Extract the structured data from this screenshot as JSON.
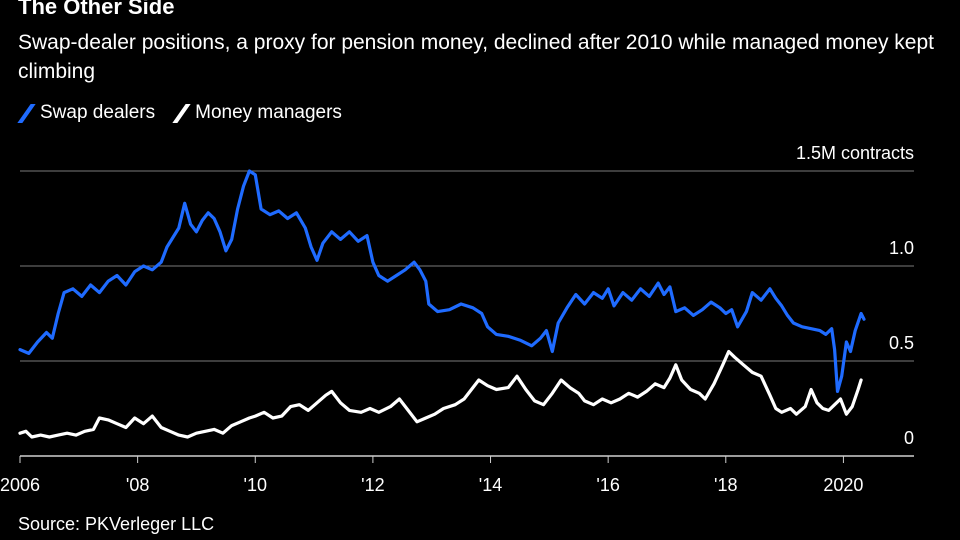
{
  "title": "The Other Side",
  "subtitle": "Swap-dealer positions, a proxy for pension money, declined after 2010 while managed money kept climbing",
  "source": "Source: PKVerleger LLC",
  "chart_data": {
    "type": "line",
    "title": "The Other Side",
    "subtitle": "Swap-dealer positions, a proxy for pension money, declined after 2010 while managed money kept climbing",
    "unit_label": "1.5M contracts",
    "ylim": [
      0,
      1.5
    ],
    "xlim": [
      2006,
      2021.2
    ],
    "y_ticks": [
      {
        "value": 1.5,
        "label": "1.5M contracts"
      },
      {
        "value": 1.0,
        "label": "1.0"
      },
      {
        "value": 0.5,
        "label": "0.5"
      },
      {
        "value": 0,
        "label": "0"
      }
    ],
    "x_ticks": [
      {
        "value": 2006,
        "label": "2006"
      },
      {
        "value": 2008,
        "label": "'08"
      },
      {
        "value": 2010,
        "label": "'10"
      },
      {
        "value": 2012,
        "label": "'12"
      },
      {
        "value": 2014,
        "label": "'14"
      },
      {
        "value": 2016,
        "label": "'16"
      },
      {
        "value": 2018,
        "label": "'18"
      },
      {
        "value": 2020,
        "label": "2020"
      }
    ],
    "grid": true,
    "legend_position": "top-left",
    "series": [
      {
        "name": "Swap dealers",
        "color": "#1f6bff",
        "points": [
          [
            2006.0,
            0.56
          ],
          [
            2006.15,
            0.54
          ],
          [
            2006.3,
            0.6
          ],
          [
            2006.45,
            0.65
          ],
          [
            2006.55,
            0.62
          ],
          [
            2006.65,
            0.75
          ],
          [
            2006.75,
            0.86
          ],
          [
            2006.9,
            0.88
          ],
          [
            2007.05,
            0.84
          ],
          [
            2007.2,
            0.9
          ],
          [
            2007.35,
            0.86
          ],
          [
            2007.5,
            0.92
          ],
          [
            2007.65,
            0.95
          ],
          [
            2007.8,
            0.9
          ],
          [
            2007.95,
            0.97
          ],
          [
            2008.1,
            1.0
          ],
          [
            2008.25,
            0.98
          ],
          [
            2008.4,
            1.02
          ],
          [
            2008.5,
            1.1
          ],
          [
            2008.6,
            1.15
          ],
          [
            2008.7,
            1.2
          ],
          [
            2008.8,
            1.33
          ],
          [
            2008.9,
            1.22
          ],
          [
            2009.0,
            1.18
          ],
          [
            2009.1,
            1.24
          ],
          [
            2009.2,
            1.28
          ],
          [
            2009.3,
            1.25
          ],
          [
            2009.4,
            1.18
          ],
          [
            2009.5,
            1.08
          ],
          [
            2009.6,
            1.14
          ],
          [
            2009.7,
            1.3
          ],
          [
            2009.8,
            1.42
          ],
          [
            2009.9,
            1.5
          ],
          [
            2010.0,
            1.48
          ],
          [
            2010.1,
            1.3
          ],
          [
            2010.25,
            1.27
          ],
          [
            2010.4,
            1.29
          ],
          [
            2010.55,
            1.25
          ],
          [
            2010.7,
            1.28
          ],
          [
            2010.85,
            1.2
          ],
          [
            2010.95,
            1.1
          ],
          [
            2011.05,
            1.03
          ],
          [
            2011.15,
            1.12
          ],
          [
            2011.3,
            1.18
          ],
          [
            2011.45,
            1.14
          ],
          [
            2011.6,
            1.18
          ],
          [
            2011.75,
            1.13
          ],
          [
            2011.9,
            1.16
          ],
          [
            2012.0,
            1.02
          ],
          [
            2012.1,
            0.95
          ],
          [
            2012.25,
            0.92
          ],
          [
            2012.4,
            0.95
          ],
          [
            2012.55,
            0.98
          ],
          [
            2012.7,
            1.02
          ],
          [
            2012.8,
            0.98
          ],
          [
            2012.9,
            0.92
          ],
          [
            2012.95,
            0.8
          ],
          [
            2013.1,
            0.76
          ],
          [
            2013.3,
            0.77
          ],
          [
            2013.5,
            0.8
          ],
          [
            2013.7,
            0.78
          ],
          [
            2013.85,
            0.75
          ],
          [
            2013.95,
            0.68
          ],
          [
            2014.1,
            0.64
          ],
          [
            2014.3,
            0.63
          ],
          [
            2014.5,
            0.61
          ],
          [
            2014.7,
            0.58
          ],
          [
            2014.85,
            0.62
          ],
          [
            2014.95,
            0.66
          ],
          [
            2015.05,
            0.55
          ],
          [
            2015.15,
            0.7
          ],
          [
            2015.3,
            0.78
          ],
          [
            2015.45,
            0.85
          ],
          [
            2015.6,
            0.8
          ],
          [
            2015.75,
            0.86
          ],
          [
            2015.9,
            0.83
          ],
          [
            2016.0,
            0.88
          ],
          [
            2016.1,
            0.79
          ],
          [
            2016.25,
            0.86
          ],
          [
            2016.4,
            0.82
          ],
          [
            2016.55,
            0.88
          ],
          [
            2016.7,
            0.84
          ],
          [
            2016.85,
            0.91
          ],
          [
            2016.95,
            0.85
          ],
          [
            2017.05,
            0.89
          ],
          [
            2017.15,
            0.76
          ],
          [
            2017.3,
            0.78
          ],
          [
            2017.45,
            0.74
          ],
          [
            2017.6,
            0.77
          ],
          [
            2017.75,
            0.81
          ],
          [
            2017.9,
            0.78
          ],
          [
            2018.0,
            0.75
          ],
          [
            2018.1,
            0.77
          ],
          [
            2018.2,
            0.68
          ],
          [
            2018.35,
            0.76
          ],
          [
            2018.45,
            0.86
          ],
          [
            2018.6,
            0.82
          ],
          [
            2018.75,
            0.88
          ],
          [
            2018.85,
            0.83
          ],
          [
            2018.95,
            0.79
          ],
          [
            2019.05,
            0.74
          ],
          [
            2019.15,
            0.7
          ],
          [
            2019.3,
            0.68
          ],
          [
            2019.45,
            0.67
          ],
          [
            2019.6,
            0.66
          ],
          [
            2019.7,
            0.64
          ],
          [
            2019.8,
            0.67
          ],
          [
            2019.85,
            0.56
          ],
          [
            2019.9,
            0.34
          ],
          [
            2019.97,
            0.42
          ],
          [
            2020.05,
            0.6
          ],
          [
            2020.12,
            0.55
          ],
          [
            2020.2,
            0.66
          ],
          [
            2020.3,
            0.75
          ],
          [
            2020.35,
            0.72
          ]
        ]
      },
      {
        "name": "Money managers",
        "color": "#ffffff",
        "points": [
          [
            2006.0,
            0.12
          ],
          [
            2006.1,
            0.13
          ],
          [
            2006.2,
            0.1
          ],
          [
            2006.35,
            0.11
          ],
          [
            2006.5,
            0.1
          ],
          [
            2006.65,
            0.11
          ],
          [
            2006.8,
            0.12
          ],
          [
            2006.95,
            0.11
          ],
          [
            2007.1,
            0.13
          ],
          [
            2007.25,
            0.14
          ],
          [
            2007.35,
            0.2
          ],
          [
            2007.5,
            0.19
          ],
          [
            2007.65,
            0.17
          ],
          [
            2007.8,
            0.15
          ],
          [
            2007.95,
            0.2
          ],
          [
            2008.1,
            0.17
          ],
          [
            2008.25,
            0.21
          ],
          [
            2008.4,
            0.15
          ],
          [
            2008.55,
            0.13
          ],
          [
            2008.7,
            0.11
          ],
          [
            2008.85,
            0.1
          ],
          [
            2009.0,
            0.12
          ],
          [
            2009.15,
            0.13
          ],
          [
            2009.3,
            0.14
          ],
          [
            2009.45,
            0.12
          ],
          [
            2009.6,
            0.16
          ],
          [
            2009.75,
            0.18
          ],
          [
            2009.9,
            0.2
          ],
          [
            2010.0,
            0.21
          ],
          [
            2010.15,
            0.23
          ],
          [
            2010.3,
            0.2
          ],
          [
            2010.45,
            0.21
          ],
          [
            2010.6,
            0.26
          ],
          [
            2010.75,
            0.27
          ],
          [
            2010.9,
            0.24
          ],
          [
            2011.05,
            0.28
          ],
          [
            2011.2,
            0.32
          ],
          [
            2011.3,
            0.34
          ],
          [
            2011.45,
            0.28
          ],
          [
            2011.6,
            0.24
          ],
          [
            2011.8,
            0.23
          ],
          [
            2011.95,
            0.25
          ],
          [
            2012.1,
            0.23
          ],
          [
            2012.3,
            0.26
          ],
          [
            2012.45,
            0.3
          ],
          [
            2012.6,
            0.24
          ],
          [
            2012.75,
            0.18
          ],
          [
            2012.9,
            0.2
          ],
          [
            2013.05,
            0.22
          ],
          [
            2013.2,
            0.25
          ],
          [
            2013.4,
            0.27
          ],
          [
            2013.55,
            0.3
          ],
          [
            2013.7,
            0.36
          ],
          [
            2013.8,
            0.4
          ],
          [
            2013.95,
            0.37
          ],
          [
            2014.1,
            0.35
          ],
          [
            2014.3,
            0.36
          ],
          [
            2014.45,
            0.42
          ],
          [
            2014.6,
            0.35
          ],
          [
            2014.75,
            0.29
          ],
          [
            2014.9,
            0.27
          ],
          [
            2015.05,
            0.33
          ],
          [
            2015.2,
            0.4
          ],
          [
            2015.35,
            0.36
          ],
          [
            2015.5,
            0.33
          ],
          [
            2015.6,
            0.29
          ],
          [
            2015.75,
            0.27
          ],
          [
            2015.9,
            0.3
          ],
          [
            2016.05,
            0.28
          ],
          [
            2016.2,
            0.3
          ],
          [
            2016.35,
            0.33
          ],
          [
            2016.5,
            0.31
          ],
          [
            2016.65,
            0.34
          ],
          [
            2016.8,
            0.38
          ],
          [
            2016.95,
            0.36
          ],
          [
            2017.05,
            0.41
          ],
          [
            2017.15,
            0.48
          ],
          [
            2017.25,
            0.4
          ],
          [
            2017.4,
            0.35
          ],
          [
            2017.55,
            0.33
          ],
          [
            2017.65,
            0.3
          ],
          [
            2017.8,
            0.38
          ],
          [
            2017.95,
            0.48
          ],
          [
            2018.05,
            0.55
          ],
          [
            2018.15,
            0.52
          ],
          [
            2018.3,
            0.48
          ],
          [
            2018.45,
            0.44
          ],
          [
            2018.6,
            0.42
          ],
          [
            2018.75,
            0.32
          ],
          [
            2018.85,
            0.25
          ],
          [
            2018.95,
            0.23
          ],
          [
            2019.1,
            0.25
          ],
          [
            2019.2,
            0.22
          ],
          [
            2019.35,
            0.26
          ],
          [
            2019.45,
            0.35
          ],
          [
            2019.55,
            0.28
          ],
          [
            2019.65,
            0.25
          ],
          [
            2019.75,
            0.24
          ],
          [
            2019.85,
            0.27
          ],
          [
            2019.95,
            0.3
          ],
          [
            2020.05,
            0.22
          ],
          [
            2020.15,
            0.26
          ],
          [
            2020.25,
            0.35
          ],
          [
            2020.3,
            0.4
          ]
        ]
      }
    ]
  }
}
